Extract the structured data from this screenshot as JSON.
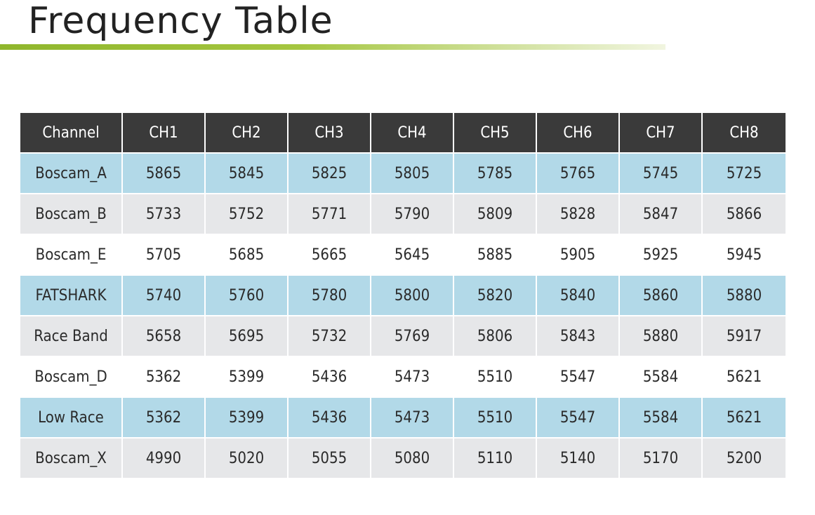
{
  "title": "Frequency Table",
  "colors": {
    "header_bg": "#3a3a3a",
    "header_text": "#ffffff",
    "row_blue": "#b2d9e8",
    "row_gray": "#e6e7e9",
    "row_white": "#ffffff",
    "accent_line": "#8fb62c"
  },
  "table": {
    "headers": [
      "Channel",
      "CH1",
      "CH2",
      "CH3",
      "CH4",
      "CH5",
      "CH6",
      "CH7",
      "CH8"
    ],
    "rows": [
      {
        "name": "Boscam_A",
        "style": "blue",
        "values": [
          "5865",
          "5845",
          "5825",
          "5805",
          "5785",
          "5765",
          "5745",
          "5725"
        ]
      },
      {
        "name": "Boscam_B",
        "style": "gray",
        "values": [
          "5733",
          "5752",
          "5771",
          "5790",
          "5809",
          "5828",
          "5847",
          "5866"
        ]
      },
      {
        "name": "Boscam_E",
        "style": "white",
        "values": [
          "5705",
          "5685",
          "5665",
          "5645",
          "5885",
          "5905",
          "5925",
          "5945"
        ]
      },
      {
        "name": "FATSHARK",
        "style": "blue",
        "values": [
          "5740",
          "5760",
          "5780",
          "5800",
          "5820",
          "5840",
          "5860",
          "5880"
        ]
      },
      {
        "name": "Race Band",
        "style": "gray",
        "values": [
          "5658",
          "5695",
          "5732",
          "5769",
          "5806",
          "5843",
          "5880",
          "5917"
        ]
      },
      {
        "name": "Boscam_D",
        "style": "white",
        "values": [
          "5362",
          "5399",
          "5436",
          "5473",
          "5510",
          "5547",
          "5584",
          "5621"
        ]
      },
      {
        "name": "Low Race",
        "style": "blue",
        "values": [
          "5362",
          "5399",
          "5436",
          "5473",
          "5510",
          "5547",
          "5584",
          "5621"
        ]
      },
      {
        "name": "Boscam_X",
        "style": "gray",
        "values": [
          "4990",
          "5020",
          "5055",
          "5080",
          "5110",
          "5140",
          "5170",
          "5200"
        ]
      }
    ]
  }
}
